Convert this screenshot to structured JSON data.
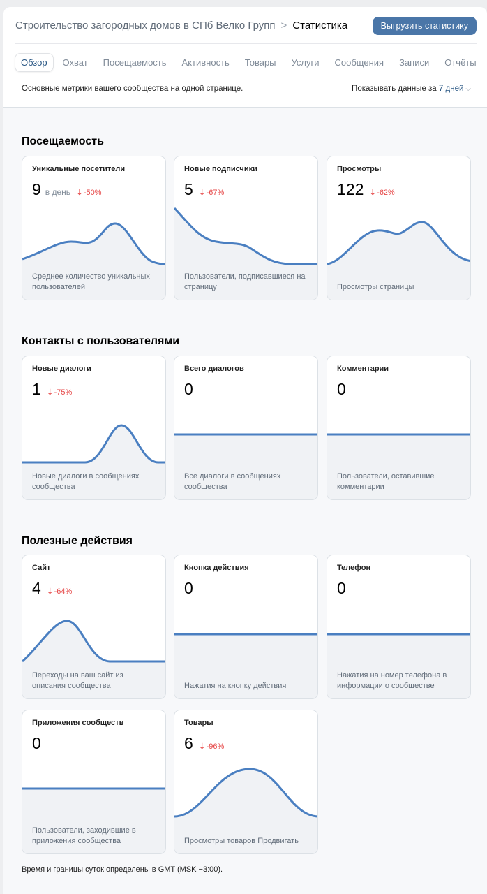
{
  "header": {
    "breadcrumb_parent": "Строительство загородных домов в СПб Велко Групп",
    "breadcrumb_separator": ">",
    "breadcrumb_current": "Статистика",
    "export_label": "Выгрузить статистику"
  },
  "tabs": [
    {
      "label": "Обзор",
      "active": true
    },
    {
      "label": "Охват"
    },
    {
      "label": "Посещаемость"
    },
    {
      "label": "Активность"
    },
    {
      "label": "Товары"
    },
    {
      "label": "Услуги"
    },
    {
      "label": "Сообщения"
    },
    {
      "label": "Записи"
    },
    {
      "label": "Отчёты"
    }
  ],
  "description": "Основные метрики вашего сообщества на одной странице.",
  "period": {
    "label": "Показывать данные за",
    "value": "7 дней"
  },
  "colors": {
    "accent": "#4a76a8",
    "line": "#4a7fc1",
    "negative": "#e64646"
  },
  "sections": [
    {
      "title": "Посещаемость",
      "cards": [
        {
          "title": "Уникальные посетители",
          "value": "9",
          "unit": "в день",
          "delta": "-50%",
          "description": "Среднее количество уникальных пользователей"
        },
        {
          "title": "Новые подписчики",
          "value": "5",
          "delta": "-67%",
          "description": "Пользователи, подписавшиеся на страницу"
        },
        {
          "title": "Просмотры",
          "value": "122",
          "delta": "-62%",
          "description": "Просмотры страницы"
        }
      ]
    },
    {
      "title": "Контакты с пользователями",
      "cards": [
        {
          "title": "Новые диалоги",
          "value": "1",
          "delta": "-75%",
          "description": "Новые диалоги в сообщениях сообщества"
        },
        {
          "title": "Всего диалогов",
          "value": "0",
          "description": "Все диалоги в сообщениях сообщества"
        },
        {
          "title": "Комментарии",
          "value": "0",
          "description": "Пользователи, оставившие комментарии"
        }
      ]
    },
    {
      "title": "Полезные действия",
      "cards": [
        {
          "title": "Сайт",
          "value": "4",
          "delta": "-64%",
          "description": "Переходы на ваш сайт из описания сообщества"
        },
        {
          "title": "Кнопка действия",
          "value": "0",
          "description": "Нажатия на кнопку действия"
        },
        {
          "title": "Телефон",
          "value": "0",
          "description": "Нажатия на номер телефона в информации о сообществе"
        },
        {
          "title": "Приложения сообществ",
          "value": "0",
          "description": "Пользователи, заходившие в приложения сообщества"
        },
        {
          "title": "Товары",
          "value": "6",
          "delta": "-96%",
          "description": "Просмотры товаров Продвигать"
        }
      ]
    }
  ],
  "footer": "Время и границы суток определены в GMT (MSK −3:00)."
}
